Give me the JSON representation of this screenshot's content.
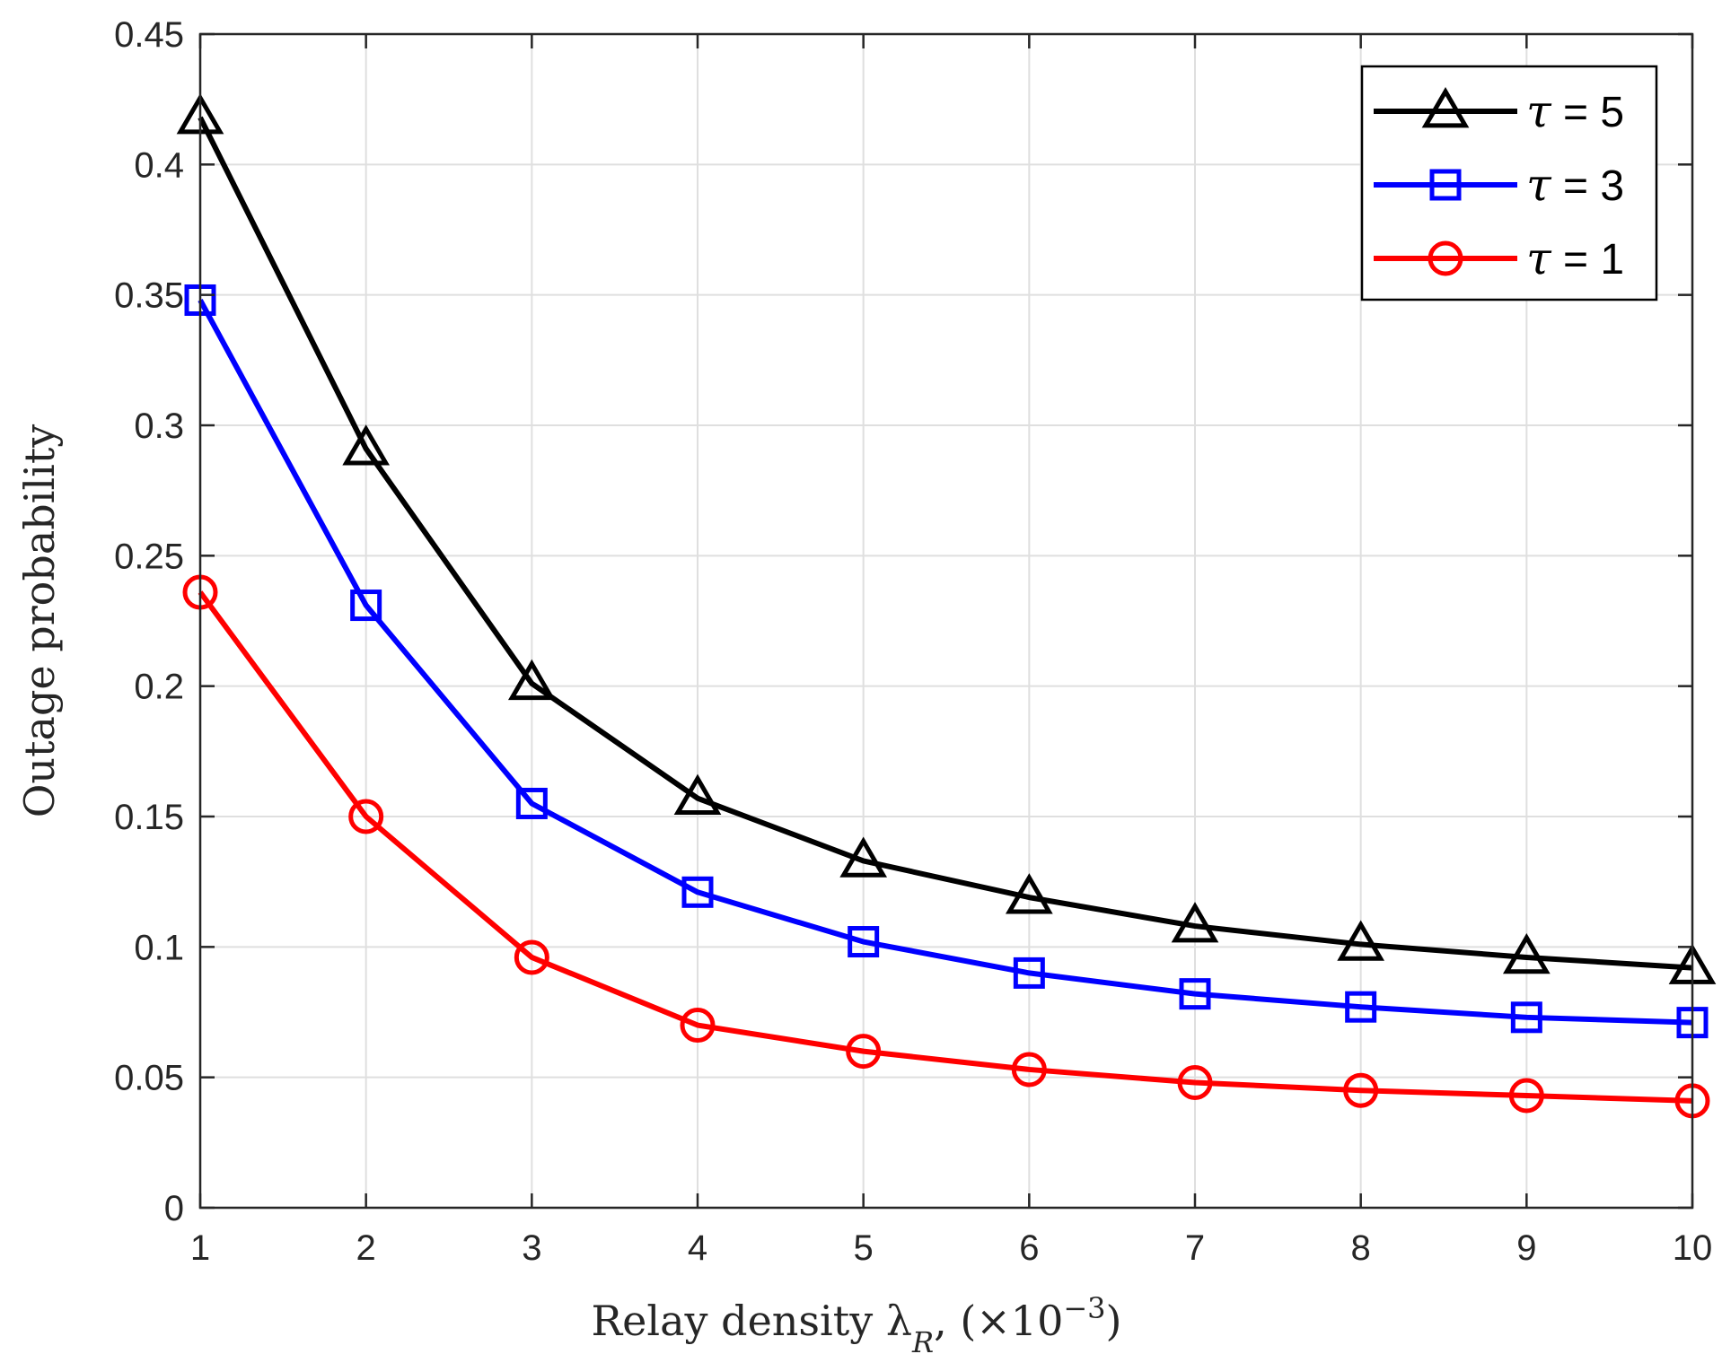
{
  "chart_data": {
    "type": "line",
    "title": "",
    "xlabel": "Relay density λ",
    "xlabel_sub": "R",
    "xlabel_unit_prefix": ", (×10",
    "xlabel_exp": "−3",
    "xlabel_unit_suffix": ")",
    "ylabel": "Outage probability",
    "xlim": [
      1,
      10
    ],
    "ylim": [
      0,
      0.45
    ],
    "xticks": [
      1,
      2,
      3,
      4,
      5,
      6,
      7,
      8,
      9,
      10
    ],
    "xtick_labels": [
      "1",
      "2",
      "3",
      "4",
      "5",
      "6",
      "7",
      "8",
      "9",
      "10"
    ],
    "yticks": [
      0,
      0.05,
      0.1,
      0.15,
      0.2,
      0.25,
      0.3,
      0.35,
      0.4,
      0.45
    ],
    "ytick_labels": [
      "0",
      "0.05",
      "0.1",
      "0.15",
      "0.2",
      "0.25",
      "0.3",
      "0.35",
      "0.4",
      "0.45"
    ],
    "grid": true,
    "legend_position": "top-right",
    "x": [
      1,
      2,
      3,
      4,
      5,
      6,
      7,
      8,
      9,
      10
    ],
    "series": [
      {
        "name": "τ = 5",
        "symbol": "τ",
        "eq": " = 5",
        "color": "#000000",
        "marker": "triangle",
        "values": [
          0.418,
          0.291,
          0.201,
          0.157,
          0.133,
          0.119,
          0.108,
          0.101,
          0.096,
          0.092
        ]
      },
      {
        "name": "τ = 3",
        "symbol": "τ",
        "eq": " = 3",
        "color": "#0000ff",
        "marker": "square",
        "values": [
          0.348,
          0.231,
          0.155,
          0.121,
          0.102,
          0.09,
          0.082,
          0.077,
          0.073,
          0.071
        ]
      },
      {
        "name": "τ = 1",
        "symbol": "τ",
        "eq": " = 1",
        "color": "#ff0000",
        "marker": "circle",
        "values": [
          0.236,
          0.15,
          0.096,
          0.07,
          0.06,
          0.053,
          0.048,
          0.045,
          0.043,
          0.041
        ]
      }
    ]
  }
}
